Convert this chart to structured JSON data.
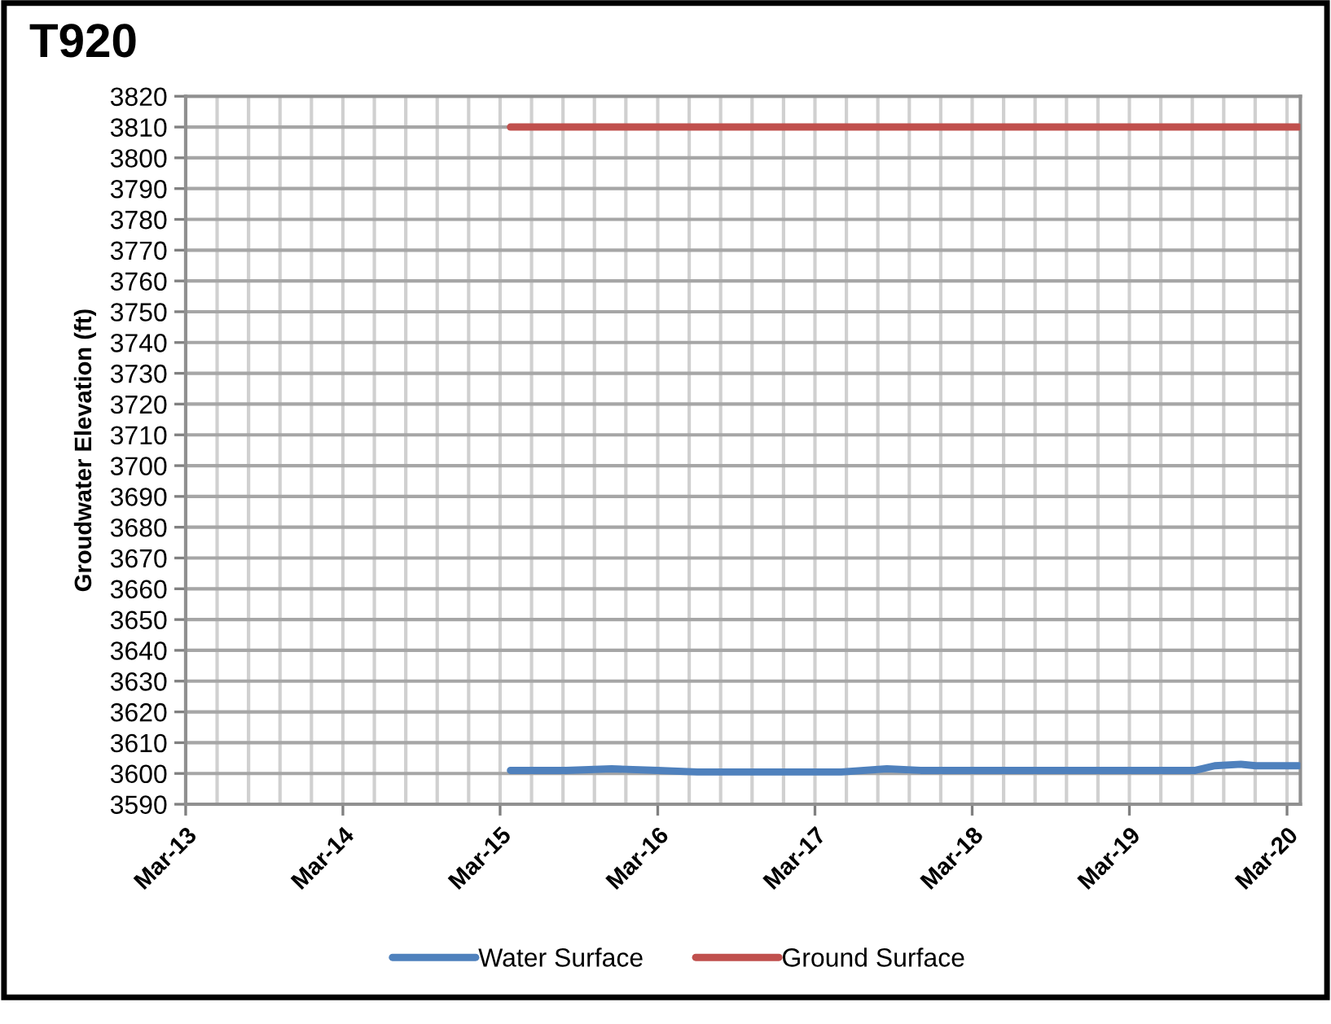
{
  "chart_data": {
    "type": "line",
    "title": "T920",
    "ylabel": "Groudwater Elevation (ft)",
    "series": [
      {
        "name": "Water Surface",
        "color": "#4f81bd",
        "x": [
          "2015-03-25",
          "2015-08-01",
          "2015-11-15",
          "2016-03-01",
          "2016-06-01",
          "2017-03-15",
          "2017-05-01",
          "2017-08-15",
          "2017-11-01",
          "2018-06-01",
          "2019-01-01",
          "2019-06-15",
          "2019-08-01",
          "2019-09-15",
          "2019-11-15",
          "2019-12-20",
          "2020-03-28"
        ],
        "values": [
          3601,
          3601,
          3601.5,
          3601,
          3600.5,
          3600.5,
          3600.5,
          3601.5,
          3601,
          3601,
          3601,
          3601,
          3601,
          3602.5,
          3603,
          3602.5,
          3602.5
        ]
      },
      {
        "name": "Ground Surface",
        "color": "#c0504d",
        "x": [
          "2015-03-25",
          "2020-03-28"
        ],
        "values": [
          3810,
          3810
        ]
      }
    ],
    "xlim": [
      "2013-03-01",
      "2020-04-01"
    ],
    "xticks": [
      {
        "value": "2013-03-01",
        "label": "Mar-13"
      },
      {
        "value": "2013-05-13",
        "label": null
      },
      {
        "value": "2013-07-25",
        "label": null
      },
      {
        "value": "2013-10-06",
        "label": null
      },
      {
        "value": "2013-12-18",
        "label": null
      },
      {
        "value": "2014-03-01",
        "label": "Mar-14"
      },
      {
        "value": "2014-05-13",
        "label": null
      },
      {
        "value": "2014-07-25",
        "label": null
      },
      {
        "value": "2014-10-06",
        "label": null
      },
      {
        "value": "2014-12-18",
        "label": null
      },
      {
        "value": "2015-03-01",
        "label": "Mar-15"
      },
      {
        "value": "2015-05-13",
        "label": null
      },
      {
        "value": "2015-07-25",
        "label": null
      },
      {
        "value": "2015-10-06",
        "label": null
      },
      {
        "value": "2015-12-18",
        "label": null
      },
      {
        "value": "2016-03-01",
        "label": "Mar-16"
      },
      {
        "value": "2016-05-13",
        "label": null
      },
      {
        "value": "2016-07-25",
        "label": null
      },
      {
        "value": "2016-10-06",
        "label": null
      },
      {
        "value": "2016-12-18",
        "label": null
      },
      {
        "value": "2017-03-01",
        "label": "Mar-17"
      },
      {
        "value": "2017-05-13",
        "label": null
      },
      {
        "value": "2017-07-25",
        "label": null
      },
      {
        "value": "2017-10-06",
        "label": null
      },
      {
        "value": "2017-12-18",
        "label": null
      },
      {
        "value": "2018-03-01",
        "label": "Mar-18"
      },
      {
        "value": "2018-05-13",
        "label": null
      },
      {
        "value": "2018-07-25",
        "label": null
      },
      {
        "value": "2018-10-06",
        "label": null
      },
      {
        "value": "2018-12-18",
        "label": null
      },
      {
        "value": "2019-03-01",
        "label": "Mar-19"
      },
      {
        "value": "2019-05-13",
        "label": null
      },
      {
        "value": "2019-07-25",
        "label": null
      },
      {
        "value": "2019-10-06",
        "label": null
      },
      {
        "value": "2019-12-18",
        "label": null
      },
      {
        "value": "2020-03-01",
        "label": "Mar-20"
      }
    ],
    "ylim": [
      3590,
      3820
    ],
    "yticks": [
      3590,
      3600,
      3610,
      3620,
      3630,
      3640,
      3650,
      3660,
      3670,
      3680,
      3690,
      3700,
      3710,
      3720,
      3730,
      3740,
      3750,
      3760,
      3770,
      3780,
      3790,
      3800,
      3810,
      3820
    ],
    "grid": true,
    "legend": "bottom",
    "marker": "none",
    "line_style": "solid"
  }
}
